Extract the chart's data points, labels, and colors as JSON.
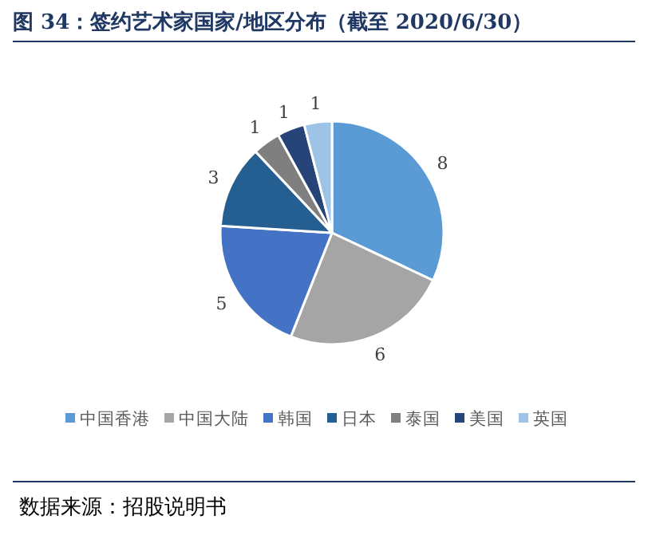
{
  "chart_data": {
    "type": "pie",
    "title": "图 34：签约艺术家国家/地区分布（截至 2020/6/30）",
    "categories": [
      "中国香港",
      "中国大陆",
      "韩国",
      "日本",
      "泰国",
      "美国",
      "英国"
    ],
    "values": [
      8,
      6,
      5,
      3,
      1,
      1,
      1
    ],
    "colors": [
      "#5b9bd5",
      "#a5a5a5",
      "#4472c4",
      "#255e91",
      "#7f7f7f",
      "#264478",
      "#9dc3e6"
    ],
    "data_labels": true,
    "legend": "bottom",
    "annotations": [
      "数据来源：招股说明书"
    ]
  }
}
